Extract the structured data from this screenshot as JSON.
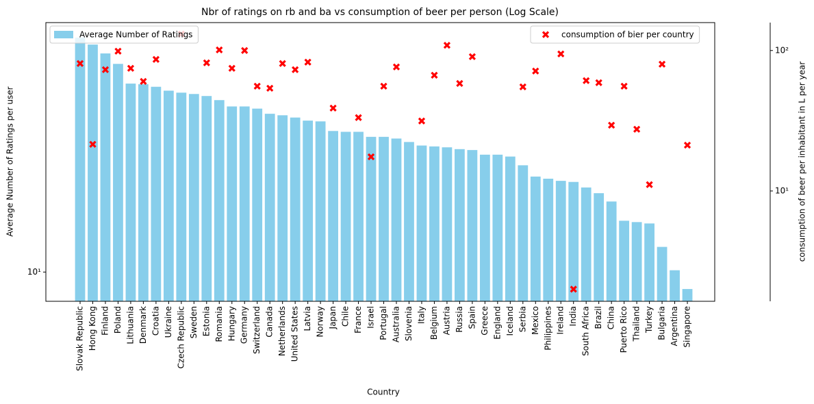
{
  "chart_data": {
    "type": "bar",
    "title": "Nbr of ratings on rb and ba vs consumption of beer per person (Log Scale)",
    "xlabel": "Country",
    "ylabel": "Average Number of Ratings per user",
    "y2label": "consumption of beer per inhabitant in L per year",
    "log_scale": true,
    "categories": [
      "Slovak Republic",
      "Hong Kong",
      "Finland",
      "Poland",
      "Lithuania",
      "Denmark",
      "Croatia",
      "Ukraine",
      "Czech Republic",
      "Sweden",
      "Estonia",
      "Romania",
      "Hungary",
      "Germany",
      "Switzerland",
      "Canada",
      "Netherlands",
      "United States",
      "Latvia",
      "Norway",
      "Japan",
      "Chile",
      "France",
      "Israel",
      "Portugal",
      "Australia",
      "Slovenia",
      "Italy",
      "Belgium",
      "Austria",
      "Russia",
      "Spain",
      "Greece",
      "England",
      "Iceland",
      "Serbia",
      "Mexico",
      "Philippines",
      "Ireland",
      "India",
      "South Africa",
      "Brazil",
      "China",
      "Puerto Rico",
      "Thailand",
      "Turkey",
      "Bulgaria",
      "Argentina",
      "Singapore"
    ],
    "series": [
      {
        "name": "Average Number of Ratings",
        "type": "bar",
        "color": "#87ceeb",
        "legend": "upper left",
        "values": [
          36.8,
          35.4,
          33.7,
          31.8,
          28.5,
          28.4,
          28.0,
          27.4,
          27.1,
          26.9,
          26.6,
          26.0,
          25.1,
          25.1,
          24.8,
          24.1,
          23.9,
          23.6,
          23.2,
          23.1,
          21.9,
          21.8,
          21.8,
          21.2,
          21.2,
          21.0,
          20.6,
          20.2,
          20.1,
          20.0,
          19.8,
          19.7,
          19.2,
          19.2,
          19.0,
          18.1,
          17.0,
          16.8,
          16.6,
          16.5,
          16.0,
          15.5,
          14.8,
          13.3,
          13.2,
          13.1,
          11.5,
          10.1,
          9.1
        ]
      },
      {
        "name": "consumption of bier per country",
        "type": "scatter",
        "axis": "y2",
        "color": "#ff0000",
        "legend": "upper right",
        "values": [
          80.8,
          21.5,
          73.0,
          98.9,
          74.7,
          60.3,
          86.4,
          null,
          131,
          null,
          81.7,
          101,
          74.7,
          100,
          55.7,
          53.9,
          80.8,
          73.0,
          82.6,
          null,
          38.9,
          null,
          33.3,
          17.5,
          55.7,
          76.4,
          null,
          31.5,
          66.7,
          109,
          58.3,
          90.4,
          null,
          null,
          null,
          55.1,
          71.4,
          null,
          94.6,
          2.0,
          61.0,
          59.0,
          29.4,
          55.7,
          27.5,
          11.1,
          79.9,
          null,
          21.2
        ]
      }
    ],
    "ylim": [
      8.5,
      40
    ],
    "yticks": [
      {
        "value": 10,
        "label": "10¹"
      }
    ],
    "y2lim": [
      1.64,
      158
    ],
    "y2ticks": [
      {
        "value": 10,
        "label": "10¹"
      },
      {
        "value": 100,
        "label": "10²"
      }
    ]
  }
}
